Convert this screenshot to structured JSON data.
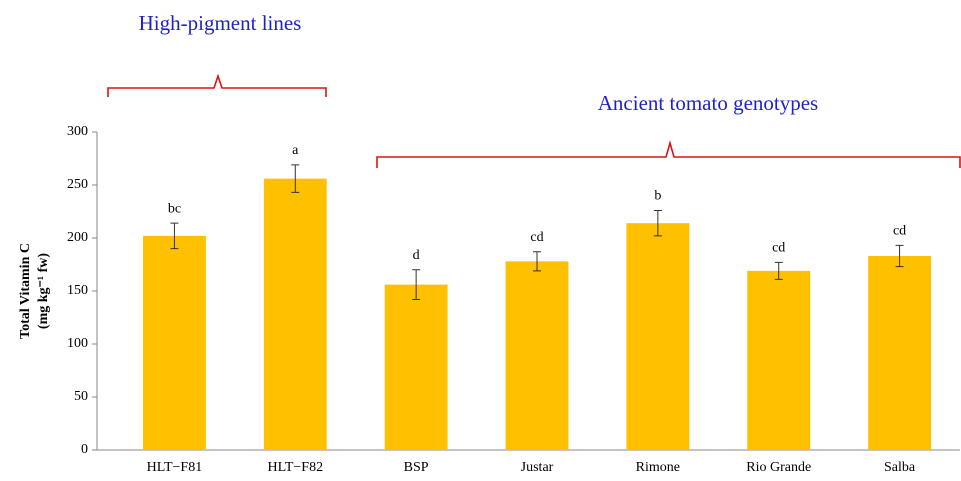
{
  "chart_data": {
    "type": "bar",
    "y_label": [
      "Total Vitamin C",
      "(mg kg⁻¹ fw)"
    ],
    "categories": [
      "HLT−F81",
      "HLT−F82",
      "BSP",
      "Justar",
      "Rimone",
      "Rio Grande",
      "Salba"
    ],
    "values": [
      202,
      256,
      156,
      178,
      214,
      169,
      183
    ],
    "errors": [
      12,
      13,
      14,
      9,
      12,
      8,
      10
    ],
    "letters": [
      "bc",
      "a",
      "d",
      "cd",
      "b",
      "cd",
      "cd"
    ],
    "color": "#ffc000",
    "ylim": [
      0,
      300
    ],
    "yticks": [
      0,
      50,
      100,
      150,
      200,
      250,
      300
    ],
    "grid": false,
    "annotations": [
      "High-pigment lines",
      "Ancient tomato genotypes"
    ]
  }
}
